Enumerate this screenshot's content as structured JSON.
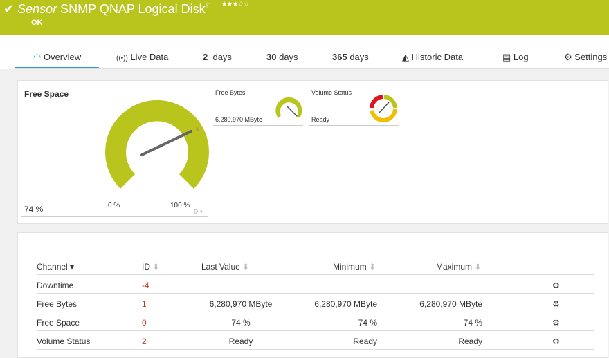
{
  "header": {
    "prefix": "Sensor",
    "title": "SNMP QNAP Logical Disk",
    "status": "OK",
    "stars": "★★★☆☆",
    "priority": 3
  },
  "tabs": [
    {
      "label": "Overview"
    },
    {
      "num": "2",
      "label": "days"
    },
    {
      "num": "30",
      "label": "days"
    },
    {
      "num": "365",
      "label": "days"
    },
    {
      "label": "Live Data"
    },
    {
      "label": "Historic Data"
    },
    {
      "label": "Log"
    },
    {
      "label": "Settings"
    }
  ],
  "gauges": {
    "free_space": {
      "title": "Free Space",
      "value": "74 %",
      "min": "0 %",
      "max": "100 %",
      "percent": 74
    },
    "free_bytes": {
      "title": "Free Bytes",
      "value": "6,280,970 MByte"
    },
    "volume_status": {
      "title": "Volume Status",
      "value": "Ready"
    }
  },
  "table": {
    "headers": [
      "Channel",
      "ID",
      "Last Value",
      "Minimum",
      "Maximum"
    ],
    "rows": [
      [
        "Downtime",
        "-4",
        "",
        "",
        ""
      ],
      [
        "Free Bytes",
        "1",
        "6,280,970 MByte",
        "6,280,970 MByte",
        "6,280,970 MByte"
      ],
      [
        "Free Space",
        "0",
        "74 %",
        "74 %",
        "74 %"
      ],
      [
        "Volume Status",
        "2",
        "Ready",
        "Ready",
        "Ready"
      ]
    ]
  },
  "colors": {
    "brand": "#b9c41c",
    "accent": "#2a9fd6",
    "warning": "#f0c000",
    "error": "#e0141e"
  }
}
